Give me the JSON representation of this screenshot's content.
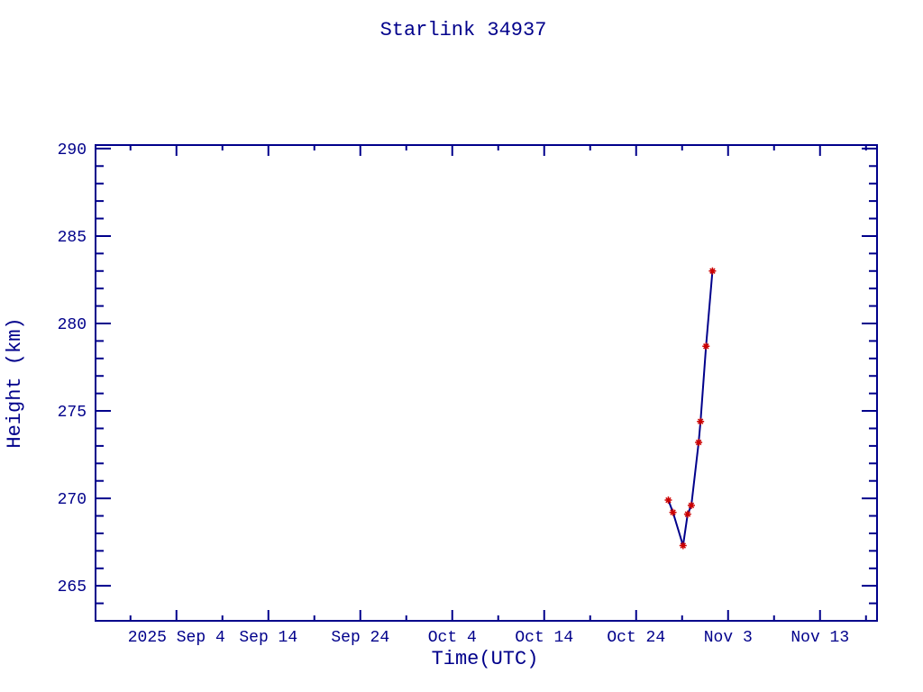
{
  "chart_data": {
    "type": "line",
    "title": "Starlink 34937",
    "xlabel": "Time(UTC)",
    "ylabel": "Height (km)",
    "grid": false,
    "legend": false,
    "colors": {
      "axis": "#00008b",
      "text": "#00008b",
      "line": "#00008b",
      "marker": "#cc0000",
      "background": "#ffffff"
    },
    "x_axis": {
      "unit": "days since 2025 Sep 4",
      "range_days": [
        -8.8,
        76.2
      ],
      "major_ticks": [
        {
          "day": 0,
          "label": "2025 Sep  4"
        },
        {
          "day": 10,
          "label": "Sep 14"
        },
        {
          "day": 20,
          "label": "Sep 24"
        },
        {
          "day": 30,
          "label": "Oct  4"
        },
        {
          "day": 40,
          "label": "Oct 14"
        },
        {
          "day": 50,
          "label": "Oct 24"
        },
        {
          "day": 60,
          "label": "Nov  3"
        },
        {
          "day": 70,
          "label": "Nov 13"
        }
      ],
      "minor_tick_days": [
        -5,
        5,
        15,
        25,
        35,
        45,
        55,
        65,
        75
      ]
    },
    "y_axis": {
      "unit": "km",
      "range": [
        263.0,
        290.2
      ],
      "major_ticks": [
        {
          "value": 265,
          "label": "265"
        },
        {
          "value": 270,
          "label": "270"
        },
        {
          "value": 275,
          "label": "275"
        },
        {
          "value": 280,
          "label": "280"
        },
        {
          "value": 285,
          "label": "285"
        },
        {
          "value": 290,
          "label": "290"
        }
      ],
      "minor_tick_values": [
        264,
        266,
        267,
        268,
        269,
        271,
        272,
        273,
        274,
        276,
        277,
        278,
        279,
        281,
        282,
        283,
        284,
        286,
        287,
        288,
        289
      ]
    },
    "series": [
      {
        "name": "Starlink 34937 height",
        "marker": "asterisk",
        "marker_color": "#cc0000",
        "line_color": "#00008b",
        "points": [
          {
            "date": "2025 Oct 27.5",
            "day": 53.5,
            "height_km": 269.9
          },
          {
            "date": "2025 Oct 28.0",
            "day": 54.0,
            "height_km": 269.2
          },
          {
            "date": "2025 Oct 29.1",
            "day": 55.1,
            "height_km": 267.3
          },
          {
            "date": "2025 Oct 29.6",
            "day": 55.6,
            "height_km": 269.1
          },
          {
            "date": "2025 Oct 30.0",
            "day": 56.0,
            "height_km": 269.6
          },
          {
            "date": "2025 Oct 30.8",
            "day": 56.8,
            "height_km": 273.2
          },
          {
            "date": "2025 Oct 31.0",
            "day": 57.0,
            "height_km": 274.4
          },
          {
            "date": "2025 Oct 31.6",
            "day": 57.6,
            "height_km": 278.7
          },
          {
            "date": "2025 Nov  1.3",
            "day": 58.3,
            "height_km": 283.0
          }
        ]
      }
    ]
  }
}
